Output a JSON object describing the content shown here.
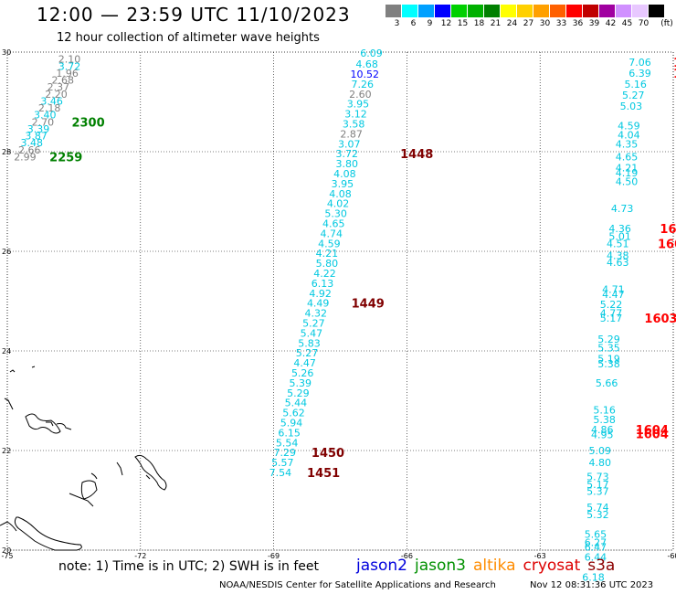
{
  "header": {
    "title": "12:00 — 23:59 UTC 11/10/2023",
    "subtitle": "12 hour collection of altimeter wave heights"
  },
  "colorbar": {
    "unit_label": "(ft)",
    "bins": [
      {
        "label": "3",
        "color": "#808080"
      },
      {
        "label": "6",
        "color": "#00ffff"
      },
      {
        "label": "9",
        "color": "#00a0ff"
      },
      {
        "label": "12",
        "color": "#0000ff"
      },
      {
        "label": "15",
        "color": "#00d000"
      },
      {
        "label": "18",
        "color": "#00b000"
      },
      {
        "label": "21",
        "color": "#008000"
      },
      {
        "label": "24",
        "color": "#ffff00"
      },
      {
        "label": "27",
        "color": "#ffd000"
      },
      {
        "label": "30",
        "color": "#ffa000"
      },
      {
        "label": "33",
        "color": "#ff6000"
      },
      {
        "label": "36",
        "color": "#ff0000"
      },
      {
        "label": "39",
        "color": "#c00000"
      },
      {
        "label": "42",
        "color": "#a000a0"
      },
      {
        "label": "45",
        "color": "#d090ff"
      },
      {
        "label": "70",
        "color": "#e8c8ff"
      },
      {
        "label": "",
        "color": "#000000"
      }
    ]
  },
  "axes": {
    "lon_ticks": [
      "-75",
      "-72",
      "-69",
      "-66",
      "-63",
      "-60"
    ],
    "lat_ticks": [
      "30",
      "28",
      "26",
      "24",
      "22",
      "20"
    ]
  },
  "passes": [
    {
      "name": "left-track",
      "points": [
        {
          "lon": -73.6,
          "lat": 29.86,
          "v": "2.10",
          "c": "#808080"
        },
        {
          "lon": -73.6,
          "lat": 29.72,
          "v": "3.72",
          "c": "#00c8e0"
        },
        {
          "lon": -73.65,
          "lat": 29.58,
          "v": "1.96",
          "c": "#808080"
        },
        {
          "lon": -73.75,
          "lat": 29.44,
          "v": "2.68",
          "c": "#808080"
        },
        {
          "lon": -73.85,
          "lat": 29.3,
          "v": "2.37",
          "c": "#808080"
        },
        {
          "lon": -73.9,
          "lat": 29.16,
          "v": "2.20",
          "c": "#808080"
        },
        {
          "lon": -74.0,
          "lat": 29.02,
          "v": "3.46",
          "c": "#00c8e0"
        },
        {
          "lon": -74.05,
          "lat": 28.88,
          "v": "2.18",
          "c": "#808080"
        },
        {
          "lon": -74.15,
          "lat": 28.74,
          "v": "3.40",
          "c": "#00c8e0"
        },
        {
          "lon": -74.2,
          "lat": 28.6,
          "v": "2.70",
          "c": "#808080"
        },
        {
          "lon": -74.3,
          "lat": 28.46,
          "v": "3.39",
          "c": "#00c8e0"
        },
        {
          "lon": -74.35,
          "lat": 28.32,
          "v": "3.87",
          "c": "#00c8e0"
        },
        {
          "lon": -74.45,
          "lat": 28.18,
          "v": "3.48",
          "c": "#00c8e0"
        },
        {
          "lon": -74.5,
          "lat": 28.04,
          "v": "2.66",
          "c": "#808080"
        },
        {
          "lon": -74.6,
          "lat": 27.9,
          "v": "2.99",
          "c": "#808080"
        }
      ],
      "time_labels": [
        {
          "lon": -73.55,
          "lat": 28.6,
          "t": "2300",
          "c": "#008000"
        },
        {
          "lon": -74.05,
          "lat": 27.9,
          "t": "2259",
          "c": "#008000"
        }
      ]
    },
    {
      "name": "center-track",
      "points": [
        {
          "lon": -66.8,
          "lat": 29.98,
          "v": "6.09",
          "c": "#00c8e0"
        },
        {
          "lon": -66.9,
          "lat": 29.76,
          "v": "4.68",
          "c": "#00c8e0"
        },
        {
          "lon": -66.95,
          "lat": 29.56,
          "v": "10.52",
          "c": "#0000ff"
        },
        {
          "lon": -67.0,
          "lat": 29.36,
          "v": "7.26",
          "c": "#00c8e0"
        },
        {
          "lon": -67.05,
          "lat": 29.16,
          "v": "2.60",
          "c": "#808080"
        },
        {
          "lon": -67.1,
          "lat": 28.96,
          "v": "3.95",
          "c": "#00c8e0"
        },
        {
          "lon": -67.15,
          "lat": 28.76,
          "v": "3.12",
          "c": "#00c8e0"
        },
        {
          "lon": -67.2,
          "lat": 28.56,
          "v": "3.58",
          "c": "#00c8e0"
        },
        {
          "lon": -67.25,
          "lat": 28.36,
          "v": "2.87",
          "c": "#808080"
        },
        {
          "lon": -67.3,
          "lat": 28.16,
          "v": "3.07",
          "c": "#00c8e0"
        },
        {
          "lon": -67.35,
          "lat": 27.96,
          "v": "3.72",
          "c": "#00c8e0"
        },
        {
          "lon": -67.35,
          "lat": 27.76,
          "v": "3.80",
          "c": "#00c8e0"
        },
        {
          "lon": -67.4,
          "lat": 27.56,
          "v": "4.08",
          "c": "#00c8e0"
        },
        {
          "lon": -67.45,
          "lat": 27.36,
          "v": "3.95",
          "c": "#00c8e0"
        },
        {
          "lon": -67.5,
          "lat": 27.16,
          "v": "4.08",
          "c": "#00c8e0"
        },
        {
          "lon": -67.55,
          "lat": 26.96,
          "v": "4.02",
          "c": "#00c8e0"
        },
        {
          "lon": -67.6,
          "lat": 26.76,
          "v": "5.30",
          "c": "#00c8e0"
        },
        {
          "lon": -67.65,
          "lat": 26.56,
          "v": "4.65",
          "c": "#00c8e0"
        },
        {
          "lon": -67.7,
          "lat": 26.36,
          "v": "4.74",
          "c": "#00c8e0"
        },
        {
          "lon": -67.75,
          "lat": 26.16,
          "v": "4.59",
          "c": "#00c8e0"
        },
        {
          "lon": -67.8,
          "lat": 25.96,
          "v": "4.21",
          "c": "#00c8e0"
        },
        {
          "lon": -67.8,
          "lat": 25.76,
          "v": "5.80",
          "c": "#00c8e0"
        },
        {
          "lon": -67.85,
          "lat": 25.56,
          "v": "4.22",
          "c": "#00c8e0"
        },
        {
          "lon": -67.9,
          "lat": 25.36,
          "v": "6.13",
          "c": "#00c8e0"
        },
        {
          "lon": -67.95,
          "lat": 25.16,
          "v": "4.92",
          "c": "#00c8e0"
        },
        {
          "lon": -68.0,
          "lat": 24.96,
          "v": "4.49",
          "c": "#00c8e0"
        },
        {
          "lon": -68.05,
          "lat": 24.76,
          "v": "4.32",
          "c": "#00c8e0"
        },
        {
          "lon": -68.1,
          "lat": 24.56,
          "v": "5.27",
          "c": "#00c8e0"
        },
        {
          "lon": -68.15,
          "lat": 24.36,
          "v": "5.47",
          "c": "#00c8e0"
        },
        {
          "lon": -68.2,
          "lat": 24.16,
          "v": "5.83",
          "c": "#00c8e0"
        },
        {
          "lon": -68.25,
          "lat": 23.96,
          "v": "5.27",
          "c": "#00c8e0"
        },
        {
          "lon": -68.3,
          "lat": 23.76,
          "v": "4.47",
          "c": "#00c8e0"
        },
        {
          "lon": -68.35,
          "lat": 23.56,
          "v": "5.26",
          "c": "#00c8e0"
        },
        {
          "lon": -68.4,
          "lat": 23.36,
          "v": "5.39",
          "c": "#00c8e0"
        },
        {
          "lon": -68.45,
          "lat": 23.16,
          "v": "5.29",
          "c": "#00c8e0"
        },
        {
          "lon": -68.5,
          "lat": 22.96,
          "v": "5.44",
          "c": "#00c8e0"
        },
        {
          "lon": -68.55,
          "lat": 22.76,
          "v": "5.62",
          "c": "#00c8e0"
        },
        {
          "lon": -68.6,
          "lat": 22.56,
          "v": "5.94",
          "c": "#00c8e0"
        },
        {
          "lon": -68.65,
          "lat": 22.36,
          "v": "6.15",
          "c": "#00c8e0"
        },
        {
          "lon": -68.7,
          "lat": 22.16,
          "v": "5.54",
          "c": "#00c8e0"
        },
        {
          "lon": -68.75,
          "lat": 21.96,
          "v": "7.29",
          "c": "#00c8e0"
        },
        {
          "lon": -68.8,
          "lat": 21.76,
          "v": "5.57",
          "c": "#00c8e0"
        },
        {
          "lon": -68.85,
          "lat": 21.56,
          "v": "7.54",
          "c": "#00c8e0"
        }
      ],
      "time_labels": [
        {
          "lon": -66.15,
          "lat": 27.96,
          "t": "1448",
          "c": "#800000"
        },
        {
          "lon": -67.25,
          "lat": 24.96,
          "t": "1449",
          "c": "#800000"
        },
        {
          "lon": -68.15,
          "lat": 21.96,
          "t": "1450",
          "c": "#800000"
        },
        {
          "lon": -68.25,
          "lat": 21.56,
          "t": "1451",
          "c": "#800000"
        }
      ]
    },
    {
      "name": "right-track",
      "points": [
        {
          "lon": -60.75,
          "lat": 29.8,
          "v": "7.06",
          "c": "#00c8e0"
        },
        {
          "lon": -60.75,
          "lat": 29.58,
          "v": "6.39",
          "c": "#00c8e0"
        },
        {
          "lon": -60.85,
          "lat": 29.36,
          "v": "5.16",
          "c": "#00c8e0"
        },
        {
          "lon": -60.9,
          "lat": 29.14,
          "v": "5.27",
          "c": "#00c8e0"
        },
        {
          "lon": -60.95,
          "lat": 28.92,
          "v": "5.03",
          "c": "#00c8e0"
        },
        {
          "lon": -61.0,
          "lat": 28.52,
          "v": "4.59",
          "c": "#00c8e0"
        },
        {
          "lon": -61.0,
          "lat": 28.34,
          "v": "4.04",
          "c": "#00c8e0"
        },
        {
          "lon": -61.05,
          "lat": 28.16,
          "v": "4.35",
          "c": "#00c8e0"
        },
        {
          "lon": -61.05,
          "lat": 27.9,
          "v": "4.65",
          "c": "#00c8e0"
        },
        {
          "lon": -61.05,
          "lat": 27.68,
          "v": "4.21",
          "c": "#00c8e0"
        },
        {
          "lon": -61.05,
          "lat": 27.58,
          "v": "4.19",
          "c": "#00c8e0"
        },
        {
          "lon": -61.05,
          "lat": 27.4,
          "v": "4.50",
          "c": "#00c8e0"
        },
        {
          "lon": -61.15,
          "lat": 26.86,
          "v": "4.73",
          "c": "#00c8e0"
        },
        {
          "lon": -61.2,
          "lat": 26.46,
          "v": "4.36",
          "c": "#00c8e0"
        },
        {
          "lon": -61.2,
          "lat": 26.3,
          "v": "5.01",
          "c": "#00c8e0"
        },
        {
          "lon": -61.25,
          "lat": 26.16,
          "v": "4.51",
          "c": "#00c8e0"
        },
        {
          "lon": -61.25,
          "lat": 25.92,
          "v": "4.38",
          "c": "#00c8e0"
        },
        {
          "lon": -61.25,
          "lat": 25.78,
          "v": "4.63",
          "c": "#00c8e0"
        },
        {
          "lon": -61.35,
          "lat": 25.24,
          "v": "4.71",
          "c": "#00c8e0"
        },
        {
          "lon": -61.35,
          "lat": 25.14,
          "v": "4.47",
          "c": "#00c8e0"
        },
        {
          "lon": -61.4,
          "lat": 24.94,
          "v": "5.22",
          "c": "#00c8e0"
        },
        {
          "lon": -61.4,
          "lat": 24.76,
          "v": "4.77",
          "c": "#00c8e0"
        },
        {
          "lon": -61.4,
          "lat": 24.66,
          "v": "5.17",
          "c": "#00c8e0"
        },
        {
          "lon": -61.45,
          "lat": 24.24,
          "v": "5.29",
          "c": "#00c8e0"
        },
        {
          "lon": -61.45,
          "lat": 24.06,
          "v": "5.35",
          "c": "#00c8e0"
        },
        {
          "lon": -61.45,
          "lat": 23.84,
          "v": "5.19",
          "c": "#00c8e0"
        },
        {
          "lon": -61.45,
          "lat": 23.74,
          "v": "5.38",
          "c": "#00c8e0"
        },
        {
          "lon": -61.5,
          "lat": 23.36,
          "v": "5.66",
          "c": "#00c8e0"
        },
        {
          "lon": -61.55,
          "lat": 22.82,
          "v": "5.16",
          "c": "#00c8e0"
        },
        {
          "lon": -61.55,
          "lat": 22.62,
          "v": "5.38",
          "c": "#00c8e0"
        },
        {
          "lon": -61.6,
          "lat": 22.42,
          "v": "4.86",
          "c": "#00c8e0"
        },
        {
          "lon": -61.6,
          "lat": 22.32,
          "v": "4.95",
          "c": "#00c8e0"
        },
        {
          "lon": -61.65,
          "lat": 22.0,
          "v": "5.09",
          "c": "#00c8e0"
        },
        {
          "lon": -61.65,
          "lat": 21.76,
          "v": "4.80",
          "c": "#00c8e0"
        },
        {
          "lon": -61.7,
          "lat": 21.48,
          "v": "5.73",
          "c": "#00c8e0"
        },
        {
          "lon": -61.7,
          "lat": 21.32,
          "v": "5.17",
          "c": "#00c8e0"
        },
        {
          "lon": -61.7,
          "lat": 21.18,
          "v": "5.37",
          "c": "#00c8e0"
        },
        {
          "lon": -61.7,
          "lat": 20.86,
          "v": "5.74",
          "c": "#00c8e0"
        },
        {
          "lon": -61.7,
          "lat": 20.72,
          "v": "5.32",
          "c": "#00c8e0"
        },
        {
          "lon": -61.75,
          "lat": 20.32,
          "v": "5.65",
          "c": "#00c8e0"
        },
        {
          "lon": -61.75,
          "lat": 20.16,
          "v": "6.27",
          "c": "#00c8e0"
        },
        {
          "lon": -61.75,
          "lat": 20.06,
          "v": "6.47",
          "c": "#00c8e0"
        },
        {
          "lon": -61.75,
          "lat": 19.86,
          "v": "6.44",
          "c": "#00c8e0"
        },
        {
          "lon": -61.8,
          "lat": 19.46,
          "v": "6.18",
          "c": "#00c8e0"
        }
      ],
      "time_labels": [
        {
          "lon": -60.0,
          "lat": 29.8,
          "t": "160",
          "c": "#ff0000"
        },
        {
          "lon": -60.0,
          "lat": 29.58,
          "t": "160",
          "c": "#ff0000"
        },
        {
          "lon": -60.3,
          "lat": 26.46,
          "t": "1603",
          "c": "#ff0000"
        },
        {
          "lon": -60.35,
          "lat": 26.16,
          "t": "1603",
          "c": "#ff0000"
        },
        {
          "lon": -60.65,
          "lat": 24.66,
          "t": "1603",
          "c": "#ff0000"
        },
        {
          "lon": -60.85,
          "lat": 22.42,
          "t": "1604",
          "c": "#ff0000"
        },
        {
          "lon": -60.85,
          "lat": 22.34,
          "t": "1604",
          "c": "#ff0000"
        }
      ]
    }
  ],
  "legend": {
    "note": "note: 1) Time is in UTC; 2) SWH is in feet",
    "satellites": [
      {
        "name": "jason2",
        "color": "#0000dd"
      },
      {
        "name": "jason3",
        "color": "#009000"
      },
      {
        "name": "altika",
        "color": "#ff8c00"
      },
      {
        "name": "cryosat",
        "color": "#dd0000"
      },
      {
        "name": "s3a",
        "color": "#8b0000"
      }
    ]
  },
  "footer": {
    "credit": "NOAA/NESDIS Center for Satellite Applications and Research",
    "timestamp": "Nov 12 08:31:36 UTC 2023"
  }
}
